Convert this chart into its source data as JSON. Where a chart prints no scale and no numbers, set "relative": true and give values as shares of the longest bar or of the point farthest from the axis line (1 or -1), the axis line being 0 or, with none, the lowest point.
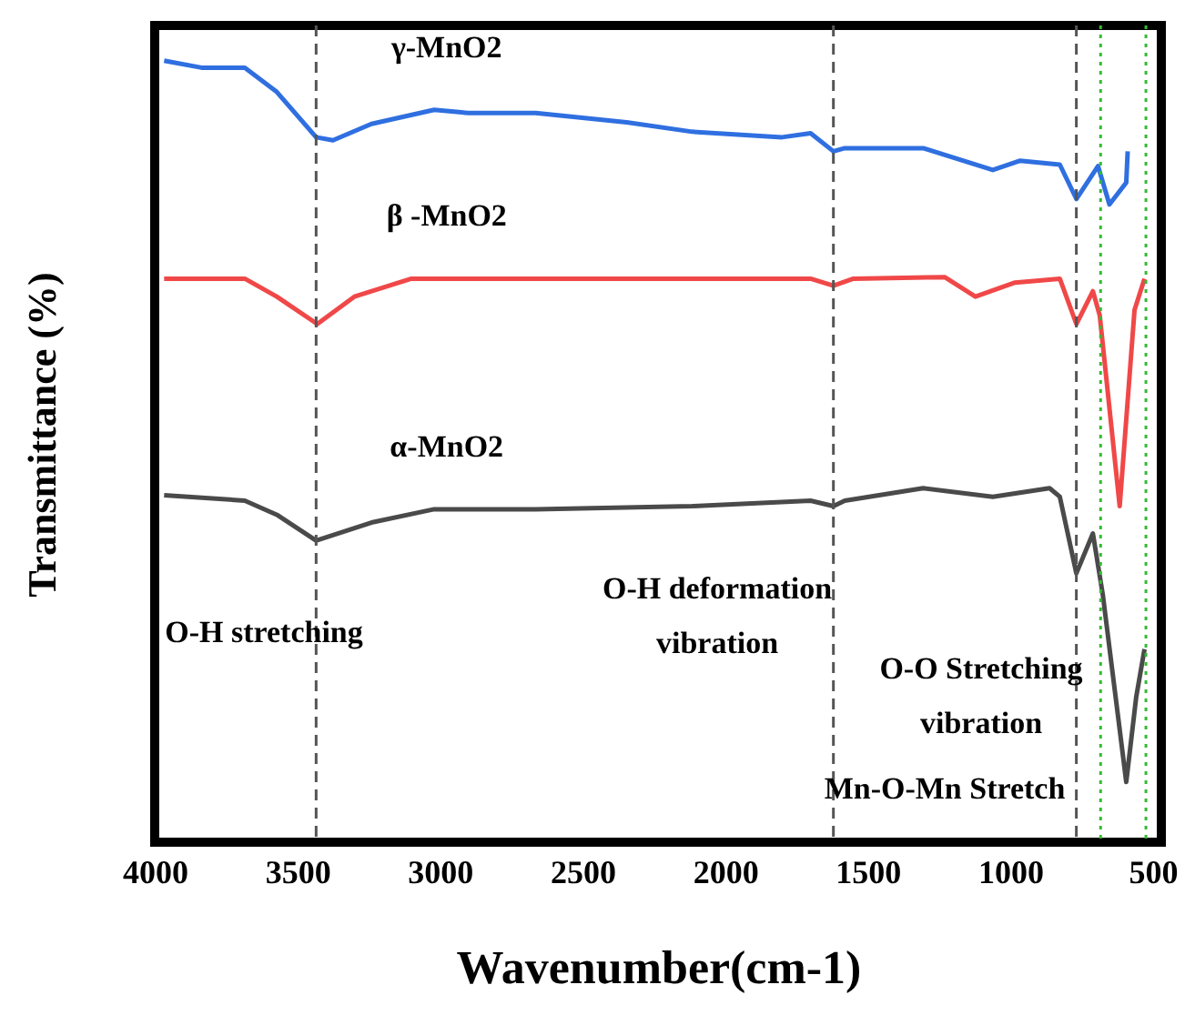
{
  "chart_data": {
    "type": "line",
    "relative": true,
    "xlabel": "Wavenumber(cm-1)",
    "ylabel": "Transmittance (%)",
    "xlim": [
      4000,
      470
    ],
    "xticks": [
      4000,
      3500,
      3000,
      2500,
      2000,
      1500,
      1000,
      500
    ],
    "line_style": "solid",
    "marker": "none",
    "series": [
      {
        "name": "γ-MnO2",
        "color": "#2f6fe0",
        "x": [
          3967,
          3836,
          3684,
          3572,
          3434,
          3375,
          3240,
          3020,
          2900,
          2664,
          2345,
          2115,
          1800,
          1700,
          1620,
          1580,
          1305,
          1061,
          965,
          826,
          768,
          692,
          652,
          593,
          588
        ],
        "values": [
          1.0,
          0.991,
          0.991,
          0.96,
          0.902,
          0.898,
          0.919,
          0.937,
          0.933,
          0.933,
          0.921,
          0.909,
          0.902,
          0.907,
          0.884,
          0.888,
          0.888,
          0.86,
          0.872,
          0.867,
          0.823,
          0.865,
          0.816,
          0.844,
          0.884
        ]
      },
      {
        "name": "β -MnO2",
        "color": "#f04848",
        "x": [
          3967,
          3684,
          3572,
          3430,
          3300,
          3100,
          1700,
          1620,
          1550,
          1230,
          1122,
          983,
          826,
          768,
          710,
          686,
          616,
          564,
          529
        ],
        "values": [
          0.721,
          0.721,
          0.698,
          0.663,
          0.698,
          0.721,
          0.721,
          0.712,
          0.721,
          0.723,
          0.698,
          0.716,
          0.721,
          0.663,
          0.705,
          0.674,
          0.43,
          0.681,
          0.721
        ]
      },
      {
        "name": "α-MnO2",
        "color": "#4a4a4a",
        "x": [
          3967,
          3684,
          3572,
          3434,
          3240,
          3020,
          2664,
          2115,
          1700,
          1620,
          1580,
          1305,
          1061,
          862,
          826,
          768,
          710,
          675,
          593,
          558,
          529
        ],
        "values": [
          0.444,
          0.437,
          0.419,
          0.386,
          0.409,
          0.426,
          0.426,
          0.43,
          0.437,
          0.43,
          0.437,
          0.453,
          0.442,
          0.453,
          0.442,
          0.344,
          0.395,
          0.316,
          0.077,
          0.186,
          0.247
        ]
      }
    ],
    "ref_lines": [
      {
        "axis": "x",
        "value": 3434,
        "color": "#555555",
        "line_style": "dashed"
      },
      {
        "axis": "x",
        "value": 1620,
        "color": "#555555",
        "line_style": "dashed"
      },
      {
        "axis": "x",
        "value": 768,
        "color": "#555555",
        "line_style": "dashed"
      },
      {
        "axis": "x",
        "value": 683,
        "color": "#33bb33",
        "line_style": "dotted"
      },
      {
        "axis": "x",
        "value": 524,
        "color": "#33bb33",
        "line_style": "dotted"
      }
    ],
    "annotations": [
      "O-H stretching",
      "O-H deformation\nvibration",
      "O-O Stretching\nvibration",
      "Mn-O-Mn Stretch"
    ]
  }
}
